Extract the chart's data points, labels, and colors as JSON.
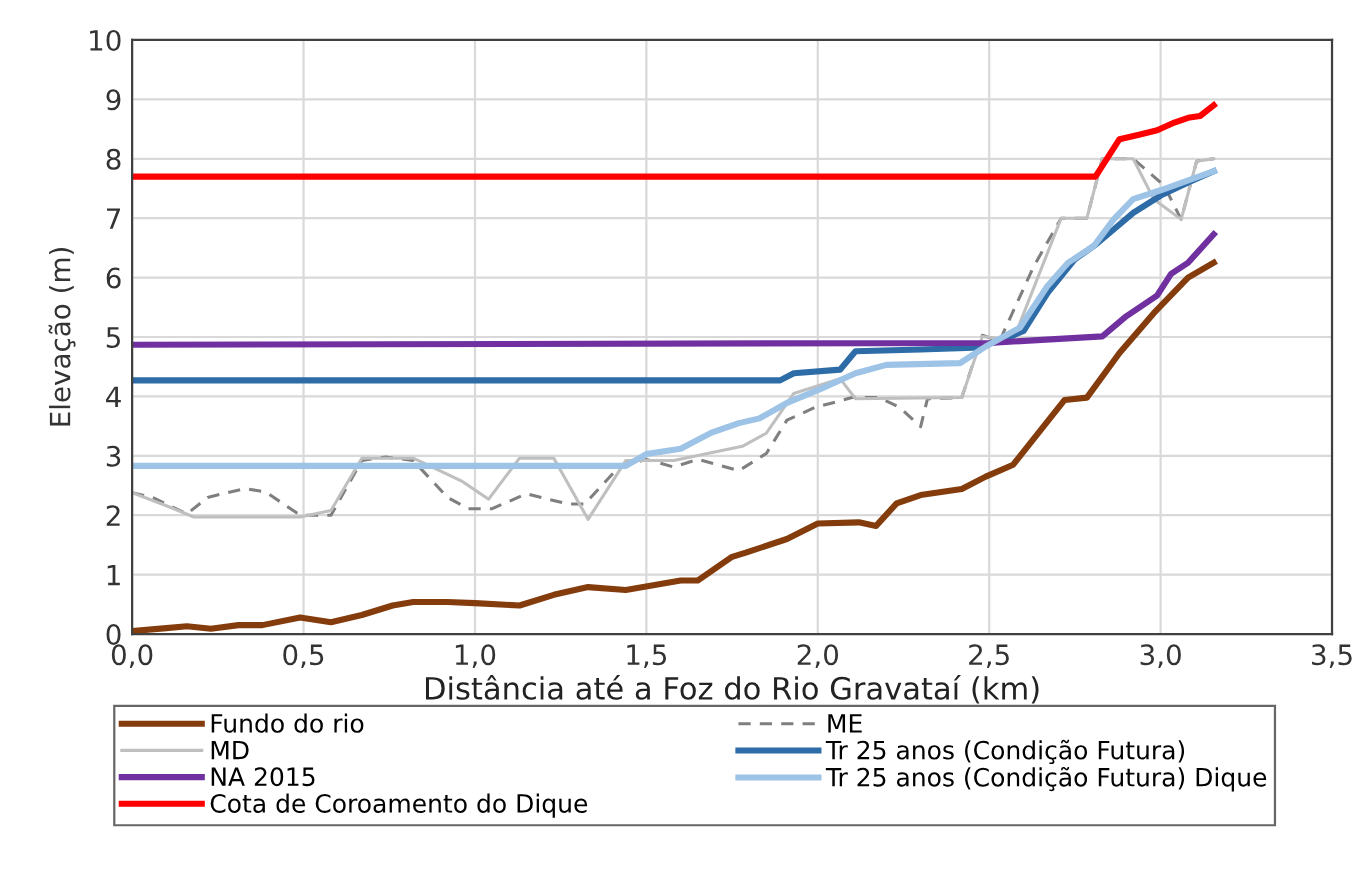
{
  "chart_data": {
    "type": "line",
    "xlabel": "Distância até a Foz do Rio Gravataí (km)",
    "ylabel": "Elevação (m)",
    "xlim": [
      0,
      3.5
    ],
    "xticks": [
      {
        "value": 0,
        "label": "0,0"
      },
      {
        "value": 0.5,
        "label": "0,5"
      },
      {
        "value": 1,
        "label": "1,0"
      },
      {
        "value": 1.5,
        "label": "1,5"
      },
      {
        "value": 2,
        "label": "2,0"
      },
      {
        "value": 2.5,
        "label": "2,5"
      },
      {
        "value": 3,
        "label": "3,0"
      },
      {
        "value": 3.5,
        "label": "3,5"
      }
    ],
    "ylim": [
      0,
      10
    ],
    "yticks": [
      0,
      1,
      2,
      3,
      4,
      5,
      6,
      7,
      8,
      9,
      10
    ],
    "grid": true,
    "legend": "bottom",
    "marker": "none",
    "series": [
      {
        "name": "Fundo do rio",
        "color": "#843c0c",
        "x": [
          0,
          0.1,
          0.16,
          0.23,
          0.31,
          0.38,
          0.49,
          0.58,
          0.67,
          0.76,
          0.82,
          0.92,
          1.0,
          1.13,
          1.23,
          1.33,
          1.44,
          1.6,
          1.65,
          1.75,
          1.79,
          1.91,
          2.0,
          2.12,
          2.17,
          2.23,
          2.3,
          2.42,
          2.49,
          2.57,
          2.72,
          2.785,
          2.88,
          2.98,
          3.08,
          3.155
        ],
        "values": [
          0.05,
          0.1,
          0.13,
          0.09,
          0.15,
          0.15,
          0.28,
          0.2,
          0.32,
          0.48,
          0.54,
          0.54,
          0.52,
          0.48,
          0.66,
          0.79,
          0.74,
          0.9,
          0.9,
          1.3,
          1.37,
          1.6,
          1.86,
          1.88,
          1.82,
          2.2,
          2.34,
          2.44,
          2.65,
          2.85,
          3.94,
          3.98,
          4.73,
          5.4,
          6.0,
          6.25
        ]
      },
      {
        "name": "ME",
        "color": "#7f7f7f",
        "line_style": "dashed",
        "x": [
          0,
          0.06,
          0.16,
          0.22,
          0.33,
          0.39,
          0.49,
          0.58,
          0.67,
          0.74,
          0.82,
          0.92,
          0.98,
          1.05,
          1.15,
          1.27,
          1.32,
          1.42,
          1.5,
          1.58,
          1.65,
          1.77,
          1.85,
          1.91,
          1.99,
          2.1,
          2.18,
          2.24,
          2.3,
          2.32,
          2.42,
          2.48,
          2.53,
          2.63,
          2.71,
          2.785,
          2.83,
          2.92,
          3.01,
          3.06,
          3.105,
          3.155
        ],
        "values": [
          2.38,
          2.3,
          2.02,
          2.3,
          2.45,
          2.39,
          2.0,
          2.0,
          2.92,
          2.98,
          2.92,
          2.3,
          2.11,
          2.11,
          2.36,
          2.19,
          2.19,
          2.81,
          2.94,
          2.81,
          2.94,
          2.75,
          3.04,
          3.6,
          3.81,
          3.98,
          3.98,
          3.81,
          3.49,
          3.96,
          3.98,
          5.03,
          4.93,
          6.19,
          7.0,
          7.0,
          8.0,
          8.0,
          7.55,
          6.98,
          7.96,
          8.0
        ]
      },
      {
        "name": "MD",
        "color": "#bfbfbf",
        "x": [
          0,
          0.1,
          0.18,
          0.3,
          0.49,
          0.58,
          0.67,
          0.82,
          0.96,
          1.04,
          1.13,
          1.23,
          1.33,
          1.44,
          1.58,
          1.78,
          1.85,
          1.93,
          2.065,
          2.11,
          2.42,
          2.48,
          2.57,
          2.71,
          2.785,
          2.83,
          2.92,
          2.98,
          3.06,
          3.105,
          3.155
        ],
        "values": [
          2.38,
          2.16,
          1.97,
          1.97,
          1.97,
          2.08,
          2.96,
          2.96,
          2.58,
          2.27,
          2.96,
          2.96,
          1.93,
          2.92,
          2.92,
          3.16,
          3.38,
          4.05,
          4.3,
          3.96,
          3.98,
          5.01,
          4.95,
          7.0,
          7.0,
          8.0,
          8.0,
          7.32,
          6.98,
          7.96,
          8.0
        ]
      },
      {
        "name": "Tr 25 anos (Condição Futura)",
        "color": "#2e6ca8",
        "x": [
          0,
          1.89,
          1.93,
          2.065,
          2.11,
          2.3,
          2.455,
          2.53,
          2.6,
          2.67,
          2.75,
          2.805,
          2.863,
          2.92,
          3.0,
          3.08,
          3.155
        ],
        "values": [
          4.27,
          4.27,
          4.39,
          4.45,
          4.76,
          4.79,
          4.82,
          4.93,
          5.1,
          5.74,
          6.31,
          6.53,
          6.81,
          7.09,
          7.38,
          7.6,
          7.79
        ]
      },
      {
        "name": "NA 2015",
        "color": "#7030a0",
        "x": [
          0,
          2.5,
          2.83,
          2.9,
          2.99,
          3.03,
          3.08,
          3.155
        ],
        "values": [
          4.87,
          4.9,
          5.01,
          5.35,
          5.7,
          6.06,
          6.25,
          6.73
        ]
      },
      {
        "name": "Tr 25 anos (Condição Futura) Dique",
        "color": "#9dc3e6",
        "x": [
          0,
          1.44,
          1.5,
          1.6,
          1.69,
          1.77,
          1.83,
          1.91,
          2.01,
          2.11,
          2.2,
          2.415,
          2.49,
          2.59,
          2.67,
          2.73,
          2.805,
          2.863,
          2.92,
          3.0,
          3.155
        ],
        "values": [
          2.83,
          2.83,
          3.03,
          3.12,
          3.39,
          3.55,
          3.63,
          3.89,
          4.13,
          4.39,
          4.53,
          4.56,
          4.84,
          5.16,
          5.86,
          6.25,
          6.53,
          6.98,
          7.32,
          7.47,
          7.79
        ]
      },
      {
        "name": "Cota de Coroamento do Dique",
        "color": "#ff0000",
        "x": [
          0,
          2.81,
          2.88,
          2.94,
          2.99,
          3.04,
          3.08,
          3.115,
          3.155
        ],
        "values": [
          7.7,
          7.7,
          8.33,
          8.41,
          8.48,
          8.61,
          8.69,
          8.72,
          8.9
        ]
      }
    ]
  }
}
